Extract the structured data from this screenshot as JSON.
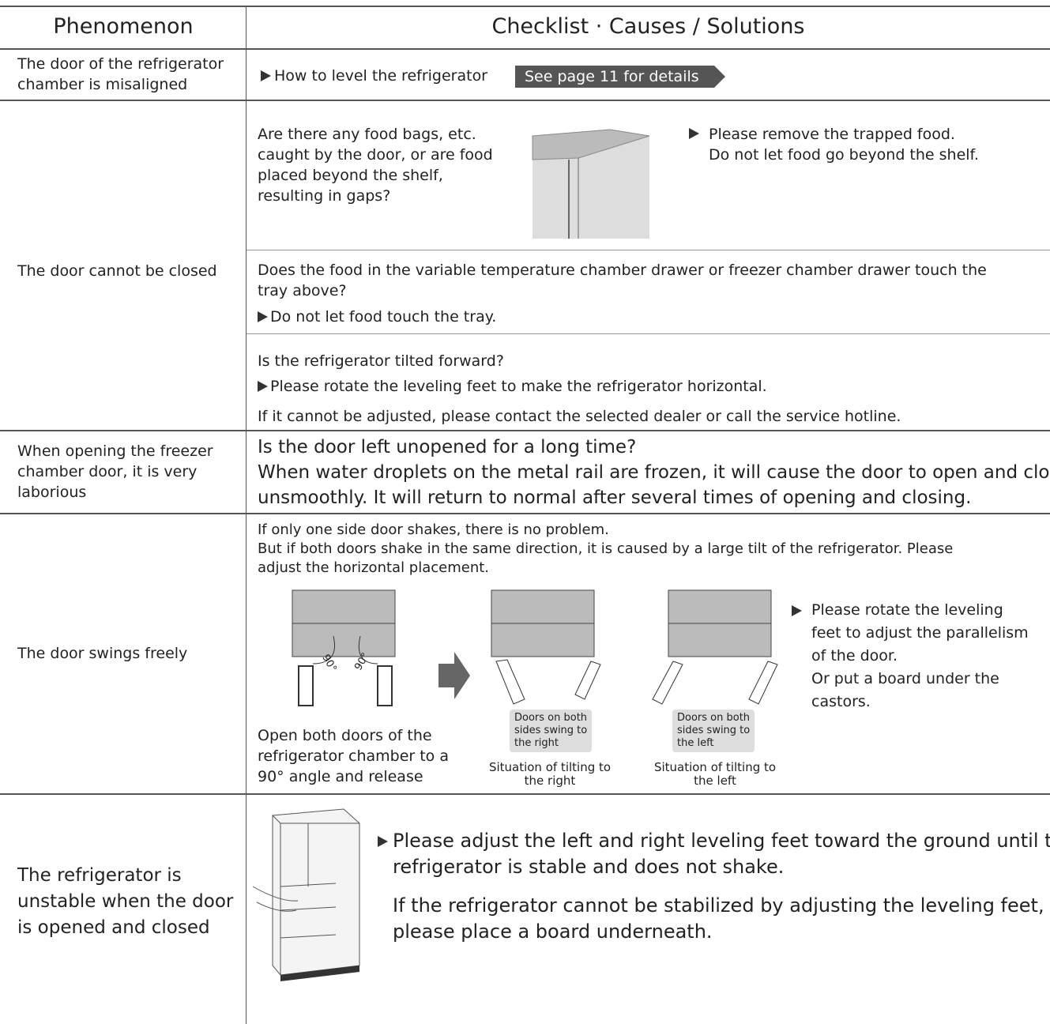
{
  "header": {
    "phenomenon": "Phenomenon",
    "checklist": "Checklist · Causes / Solutions"
  },
  "rows": [
    {
      "phenomenon": [
        "The door of the refrigerator",
        "chamber is misaligned"
      ],
      "action": "How to level the refrigerator",
      "link": "See page 11 for details"
    },
    {
      "phenomenon": [
        "The door cannot be closed"
      ],
      "checks": [
        {
          "question": [
            "Are there any food bags, etc.",
            "caught by the door, or are food",
            "placed beyond the shelf,",
            "resulting in gaps?"
          ],
          "solution": [
            "Please remove the trapped food.",
            "Do not let food go beyond the shelf."
          ]
        },
        {
          "question": [
            "Does the food in the variable temperature chamber drawer or freezer chamber drawer touch the",
            "tray above?"
          ],
          "solution": [
            "Do not let food touch the tray."
          ]
        },
        {
          "question": [
            "Is the refrigerator tilted forward?"
          ],
          "solution": [
            "Please rotate the leveling feet to make the refrigerator horizontal."
          ],
          "note": [
            "If it cannot be adjusted, please contact the selected dealer or call the service hotline."
          ]
        }
      ]
    },
    {
      "phenomenon": [
        "When opening the freezer",
        "chamber door, it is very",
        "laborious"
      ],
      "lines": [
        "Is the door left unopened for a long time?",
        "When water droplets on the metal rail are frozen, it will cause the door to open and close",
        "unsmoothly. It will return to normal after several times of opening and closing."
      ]
    },
    {
      "phenomenon": [
        "The door swings freely"
      ],
      "intro": [
        "If only one side door shakes, there is no problem.",
        "But if both doors shake in the same direction, it is caused by a large tilt of the refrigerator. Please",
        "adjust the horizontal placement."
      ],
      "angle_label": "90°",
      "step": [
        "Open both doors of the",
        "refrigerator chamber to a",
        "90° angle and release"
      ],
      "cases": [
        {
          "tag": [
            "Doors on both",
            "sides swing to",
            "the right"
          ],
          "caption": [
            "Situation of tilting to",
            "the right"
          ]
        },
        {
          "tag": [
            "Doors on both",
            "sides swing to",
            "the left"
          ],
          "caption": [
            "Situation of tilting to",
            "the left"
          ]
        }
      ],
      "solution": [
        "Please rotate the leveling",
        "feet to adjust the parallelism",
        "of the door.",
        "Or put a board under the",
        "castors."
      ]
    },
    {
      "phenomenon": [
        "The refrigerator is",
        "unstable when the door",
        "is opened and closed"
      ],
      "solution": [
        "Please adjust the left and right leveling feet toward the ground until the",
        "refrigerator is stable and does not shake."
      ],
      "note": [
        "If the refrigerator cannot be stabilized by adjusting the leveling feet,",
        "please place a board underneath."
      ]
    }
  ]
}
